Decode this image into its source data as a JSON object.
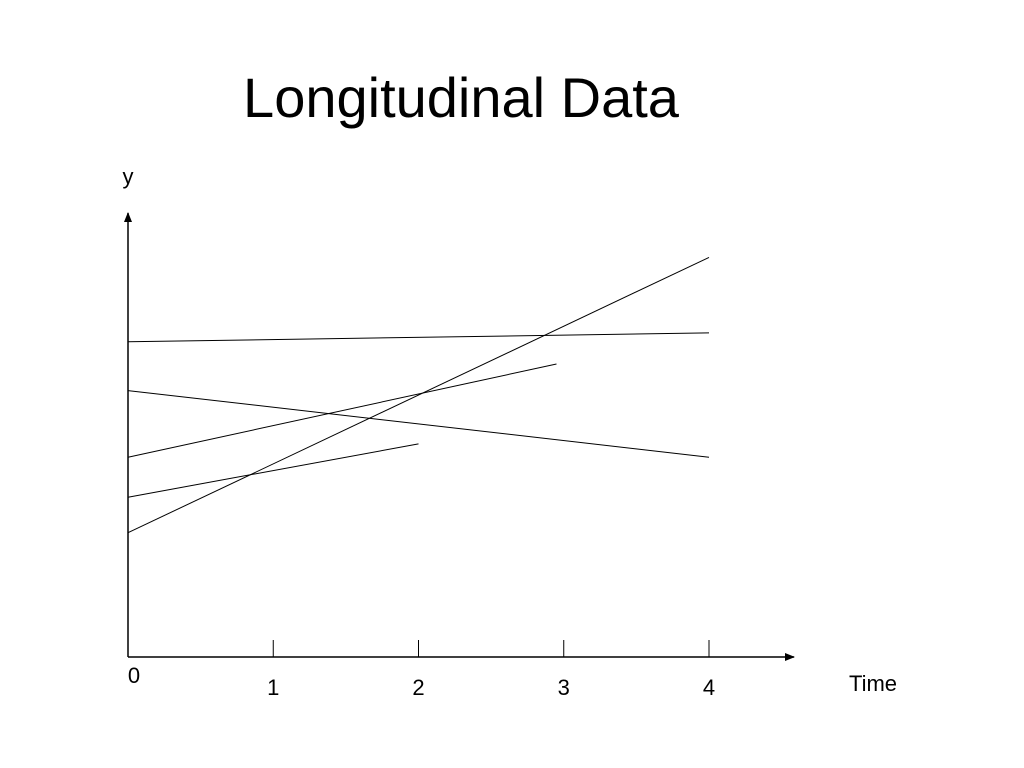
{
  "slide": {
    "title": "Longitudinal Data"
  },
  "chart_data": {
    "type": "line",
    "title": "Longitudinal Data",
    "xlabel": "Time",
    "ylabel": "y",
    "origin_label": "0",
    "x_ticks": [
      1,
      2,
      3,
      4
    ],
    "xlim": [
      0,
      4.6
    ],
    "ylim": [
      0,
      10
    ],
    "grid": false,
    "legend": "none",
    "line_color": "#000000",
    "series": [
      {
        "x": [
          0,
          4
        ],
        "y": [
          2.8,
          9.0
        ]
      },
      {
        "x": [
          0,
          4
        ],
        "y": [
          7.1,
          7.3
        ]
      },
      {
        "x": [
          0,
          2.95
        ],
        "y": [
          4.5,
          6.6
        ]
      },
      {
        "x": [
          0,
          4
        ],
        "y": [
          6.0,
          4.5
        ]
      },
      {
        "x": [
          0,
          2
        ],
        "y": [
          3.6,
          4.8
        ]
      }
    ]
  }
}
